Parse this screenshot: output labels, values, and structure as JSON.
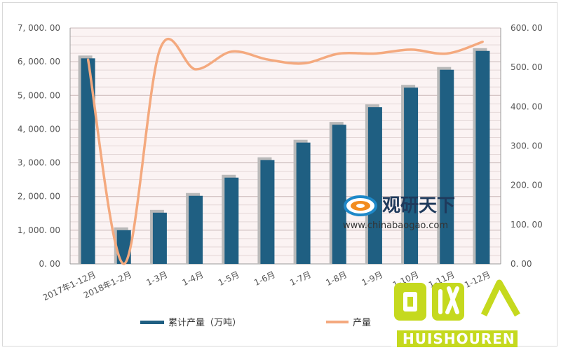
{
  "chart_data": {
    "type": "bar",
    "categories": [
      "2017年1-12月",
      "2018年1-2月",
      "1-3月",
      "1-4月",
      "1-5月",
      "1-6月",
      "1-7月",
      "1-8月",
      "1-9月",
      "1-10月",
      "1-11月",
      "1-12月"
    ],
    "series": [
      {
        "name": "累计产量（万吨）",
        "type": "bar",
        "axis": "left",
        "color": "#1f5f82",
        "values": [
          6100,
          1000,
          1520,
          2020,
          2560,
          3080,
          3600,
          4130,
          4650,
          5230,
          5760,
          6320
        ]
      },
      {
        "name": "产量",
        "type": "line",
        "axis": "right",
        "color": "#f4a97e",
        "values": [
          520,
          0,
          545,
          495,
          540,
          520,
          510,
          535,
          535,
          545,
          535,
          565
        ]
      }
    ],
    "ylim_left": [
      0,
      7000
    ],
    "ylim_right": [
      0,
      600
    ],
    "yticks_left": [
      "0. 00",
      "1, 000. 00",
      "2, 000. 00",
      "3, 000. 00",
      "4, 000. 00",
      "5, 000. 00",
      "6, 000. 00",
      "7, 000. 00"
    ],
    "yticks_right": [
      "0. 00",
      "100. 00",
      "200. 00",
      "300. 00",
      "400. 00",
      "500. 00",
      "600. 00"
    ],
    "grid": true,
    "legend_position": "bottom"
  },
  "watermark": {
    "brand_cn": "观研天下",
    "url": "www.chinabaogao.com"
  },
  "corner_logo": {
    "cn": "回收",
    "en": "HUISHOUREN",
    "color": "#c5d91e"
  }
}
